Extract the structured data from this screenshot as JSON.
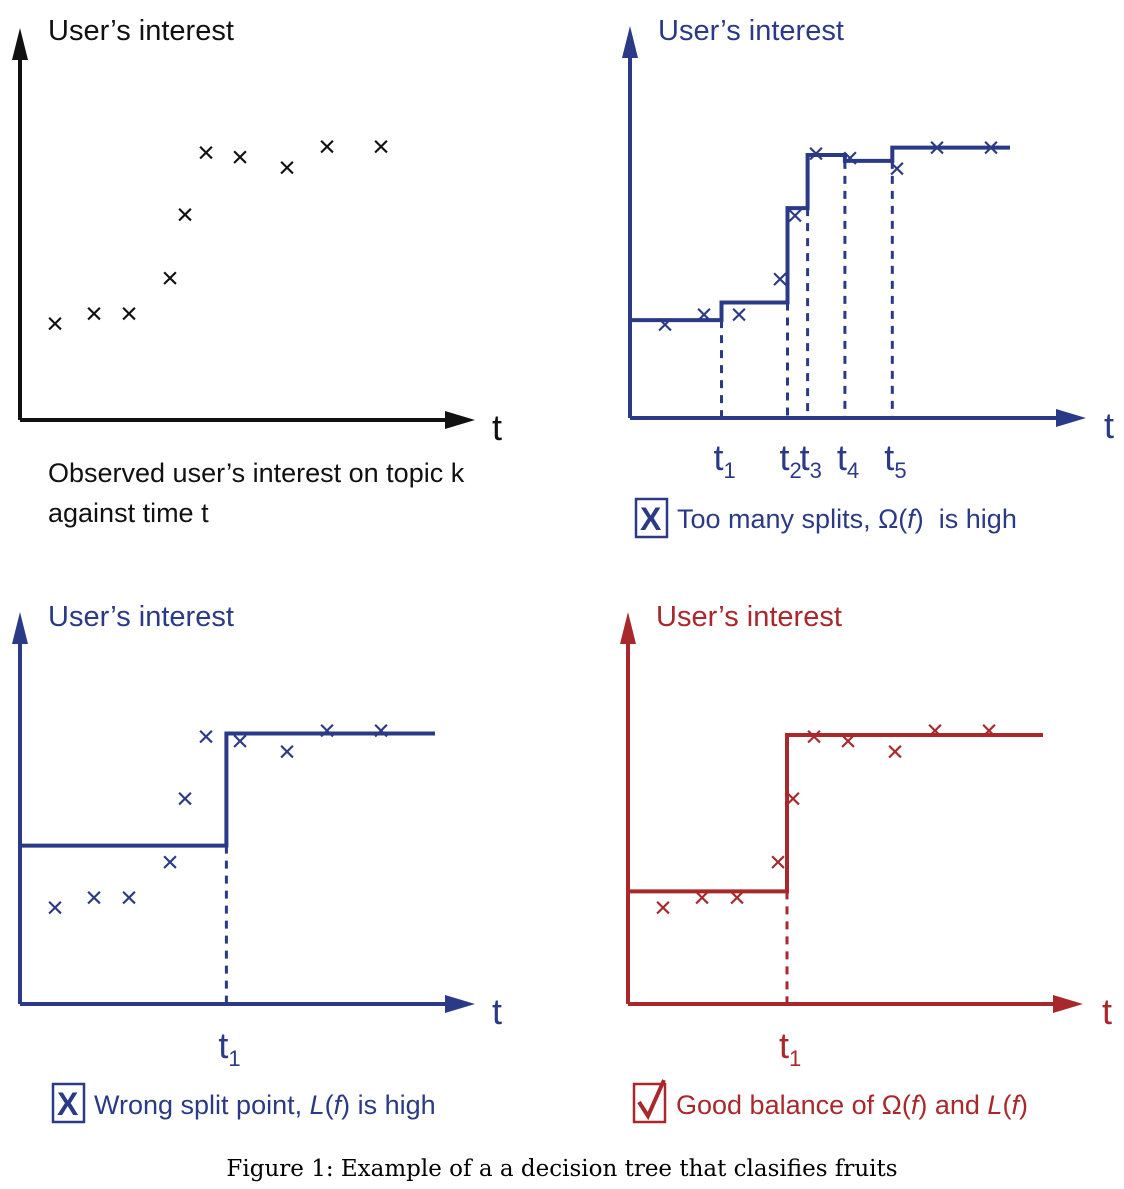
{
  "colors": {
    "black": "#111111",
    "blue": "#2b3a86",
    "red": "#a8282b"
  },
  "caption": "Figure 1: Example of a a decision tree that clasifies fruits",
  "x_axis_label": "t",
  "observations": [
    {
      "t": 1,
      "v": 3.2
    },
    {
      "t": 2,
      "v": 3.55
    },
    {
      "t": 3,
      "v": 3.55
    },
    {
      "t": 4,
      "v": 4.75
    },
    {
      "t": 5,
      "v": 6.9
    },
    {
      "t": 6,
      "v": 9.0
    },
    {
      "t": 7,
      "v": 8.85
    },
    {
      "t": 8,
      "v": 8.5
    },
    {
      "t": 9,
      "v": 9.2
    },
    {
      "t": 10,
      "v": 9.2
    }
  ],
  "panels": [
    {
      "id": "observed",
      "color": "black",
      "y_title": "User’s interest",
      "caption_lines": [
        "Observed user’s interest on topic k",
        "against time t"
      ],
      "caption_mark": "",
      "splits": [],
      "step_levels": []
    },
    {
      "id": "too-many-splits",
      "color": "blue",
      "y_title": "User’s interest",
      "caption_mark": "cross",
      "caption_parts": [
        "Too many splits, ",
        "Ω(",
        "f",
        ")",
        "  is high"
      ],
      "splits": [
        {
          "t": 2.5,
          "label": "t",
          "sub": "1"
        },
        {
          "t": 4.5,
          "label": "t",
          "sub": "2"
        },
        {
          "t": 5.6,
          "label": "t",
          "sub": "3"
        },
        {
          "t": 6.85,
          "label": "t",
          "sub": "4"
        },
        {
          "t": 7.9,
          "label": "t",
          "sub": "5"
        }
      ],
      "step_levels": [
        3.35,
        3.95,
        7.15,
        8.95,
        8.75,
        9.2
      ]
    },
    {
      "id": "wrong-split",
      "color": "blue",
      "y_title": "User’s interest",
      "caption_mark": "cross",
      "caption_parts": [
        "Wrong split point, ",
        "L",
        "(",
        "f",
        ") is high"
      ],
      "splits": [
        {
          "t": 6.6,
          "label": "t",
          "sub": "1"
        }
      ],
      "step_levels": [
        5.3,
        9.1
      ]
    },
    {
      "id": "good-balance",
      "color": "red",
      "y_title": "User’s interest",
      "caption_mark": "check",
      "caption_parts": [
        "Good balance of ",
        "Ω(",
        "f",
        ")",
        " and ",
        "L",
        "(",
        "f",
        ")"
      ],
      "splits": [
        {
          "t": 4.6,
          "label": "t",
          "sub": "1"
        }
      ],
      "step_levels": [
        3.75,
        9.05
      ]
    }
  ]
}
